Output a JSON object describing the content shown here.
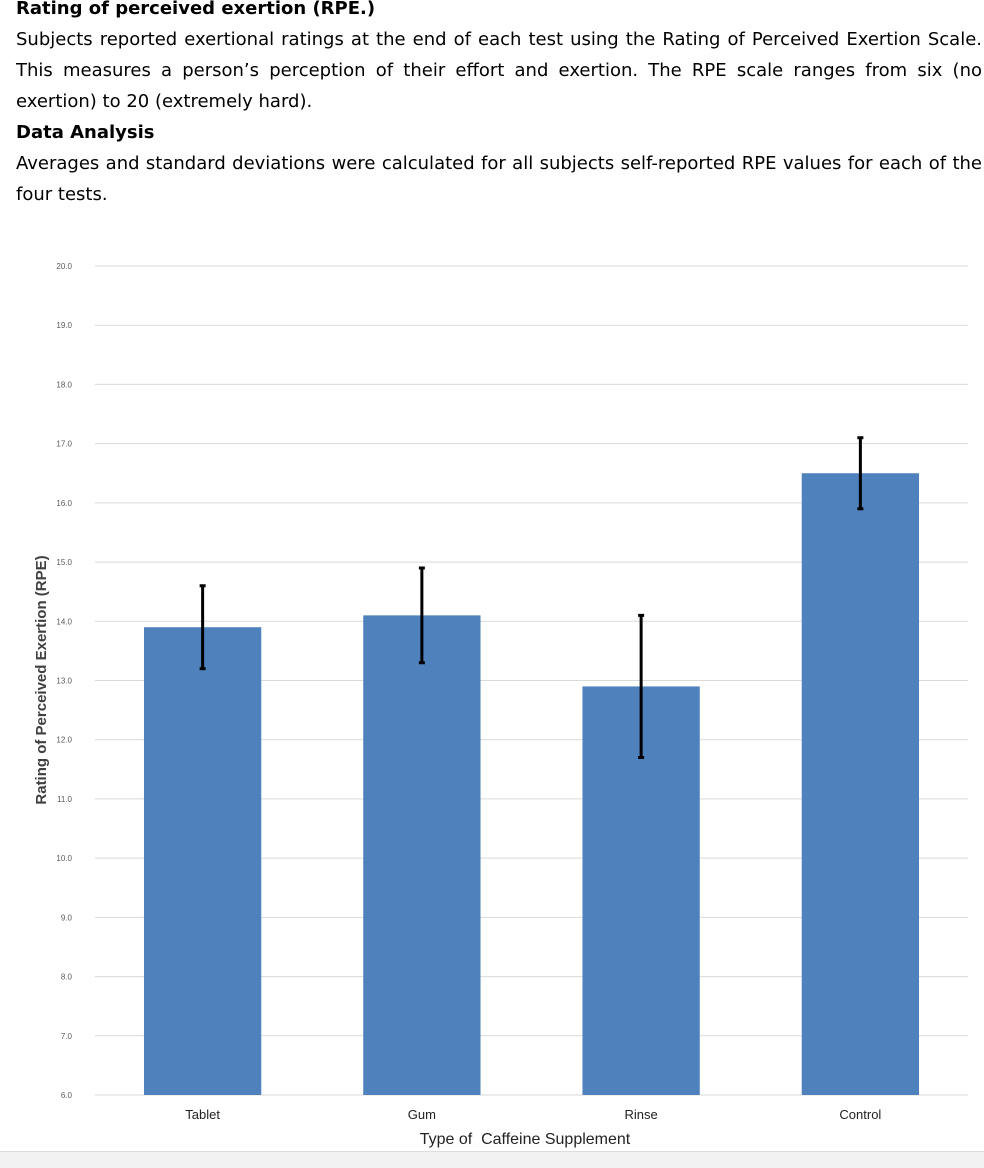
{
  "section1": {
    "heading": "Rating of perceived exertion (RPE.)",
    "paragraph": "Subjects reported exertional ratings at the end of each test using the Rating of Perceived Exertion Scale. This measures a person’s perception of their effort and exertion. The RPE scale ranges from six (no exertion) to 20 (extremely hard)."
  },
  "section2": {
    "heading": "Data Analysis",
    "paragraph": "Averages and standard deviations were calculated for all subjects self-reported RPE values for each of the four  tests."
  },
  "chart_data": {
    "type": "bar",
    "categories": [
      "Tablet",
      "Gum",
      "Rinse",
      "Control"
    ],
    "values": [
      13.9,
      14.1,
      12.9,
      16.5
    ],
    "error": [
      0.7,
      0.8,
      1.2,
      0.6
    ],
    "title": "",
    "xlabel": "Type of  Caffeine Supplement",
    "ylabel": "Rating of Perceived Exertion (RPE)",
    "ylim": [
      6,
      20
    ],
    "yticks": [
      "6.0",
      "7.0",
      "8.0",
      "9.0",
      "10.0",
      "11.0",
      "12.0",
      "13.0",
      "14.0",
      "15.0",
      "16.0",
      "17.0",
      "18.0",
      "19.0",
      "20.0"
    ],
    "grid": true,
    "legend": "none",
    "bar_color": "#4f81bd",
    "error_color": "#000000",
    "grid_color": "#d9d9d9"
  }
}
